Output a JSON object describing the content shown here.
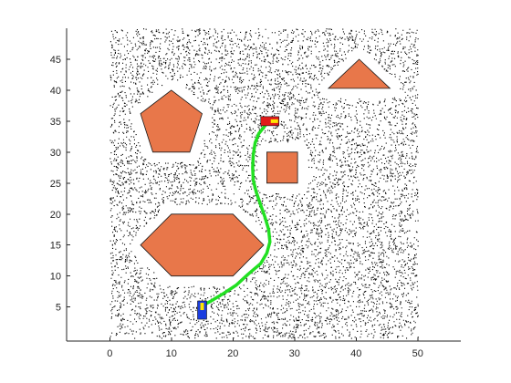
{
  "chart_data": {
    "type": "scatter",
    "title": "",
    "xlabel": "",
    "ylabel": "",
    "xlim": [
      -7,
      57
    ],
    "ylim": [
      -0.5,
      50
    ],
    "xticks": [
      0,
      10,
      20,
      30,
      40,
      50
    ],
    "yticks": [
      5,
      10,
      15,
      20,
      25,
      30,
      35,
      40,
      45
    ],
    "grid": false,
    "legend": "none",
    "map_extent": {
      "x": [
        0,
        50
      ],
      "y": [
        0,
        50
      ]
    },
    "noise_points": 9000,
    "colors": {
      "obstacle_fill": "#e8774a",
      "obstacle_edge": "#1a1a1a",
      "path": "#22e022",
      "noise": "#000000",
      "start_vehicle": "#1a3de0",
      "start_accent": "#ffe600",
      "goal_vehicle": "#e01a1a",
      "goal_accent": "#ffe600"
    },
    "obstacles": [
      {
        "name": "pentagon",
        "points": [
          [
            10,
            40
          ],
          [
            15,
            36.2
          ],
          [
            13,
            30
          ],
          [
            7,
            30
          ],
          [
            5,
            36.2
          ]
        ]
      },
      {
        "name": "square",
        "points": [
          [
            25.5,
            30
          ],
          [
            30.5,
            30
          ],
          [
            30.5,
            25
          ],
          [
            25.5,
            25
          ]
        ]
      },
      {
        "name": "triangle",
        "points": [
          [
            35.5,
            40.3
          ],
          [
            40.5,
            45
          ],
          [
            45.5,
            40.3
          ]
        ]
      },
      {
        "name": "hexagon",
        "points": [
          [
            5,
            15
          ],
          [
            10,
            20
          ],
          [
            20,
            20
          ],
          [
            25,
            15
          ],
          [
            20,
            10
          ],
          [
            10,
            10
          ]
        ]
      }
    ],
    "path": {
      "x": [
        15.0,
        16.5,
        18.5,
        20.5,
        22.5,
        24.5,
        25.5,
        26.0,
        25.8,
        25.2,
        24.5,
        23.8,
        23.3,
        23.2,
        23.3,
        23.6,
        24.2,
        25.0,
        25.8
      ],
      "y": [
        5.2,
        6.0,
        7.2,
        8.5,
        10.3,
        12.0,
        13.7,
        15.5,
        17.5,
        19.5,
        21.5,
        23.5,
        25.5,
        27.5,
        29.5,
        31.5,
        33.0,
        34.0,
        35.0
      ]
    },
    "start": {
      "x": 15,
      "y": 4.5
    },
    "goal": {
      "x": 26,
      "y": 35
    }
  }
}
